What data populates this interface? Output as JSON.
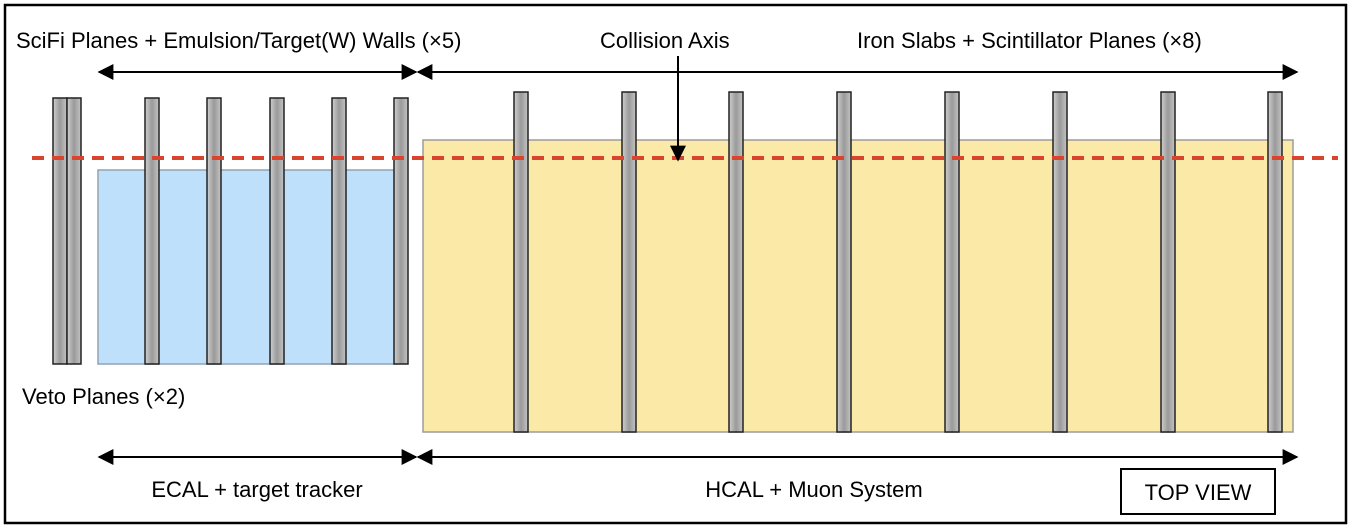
{
  "labels": {
    "scifi_walls": "SciFi Planes + Emulsion/Target(W) Walls (×5)",
    "collision_axis": "Collision Axis",
    "iron_slabs": "Iron Slabs + Scintillator Planes (×8)",
    "veto_planes": "Veto Planes (×2)",
    "ecal_tracker": "ECAL + target tracker",
    "hcal_muon": "HCAL + Muon System",
    "top_view": "TOP VIEW"
  },
  "colors": {
    "ecal_fill": "#bfe0fb",
    "hcal_fill": "#fbe9a8",
    "plane_fill": "#a0a0a0",
    "axis_line": "#d9442e"
  }
}
